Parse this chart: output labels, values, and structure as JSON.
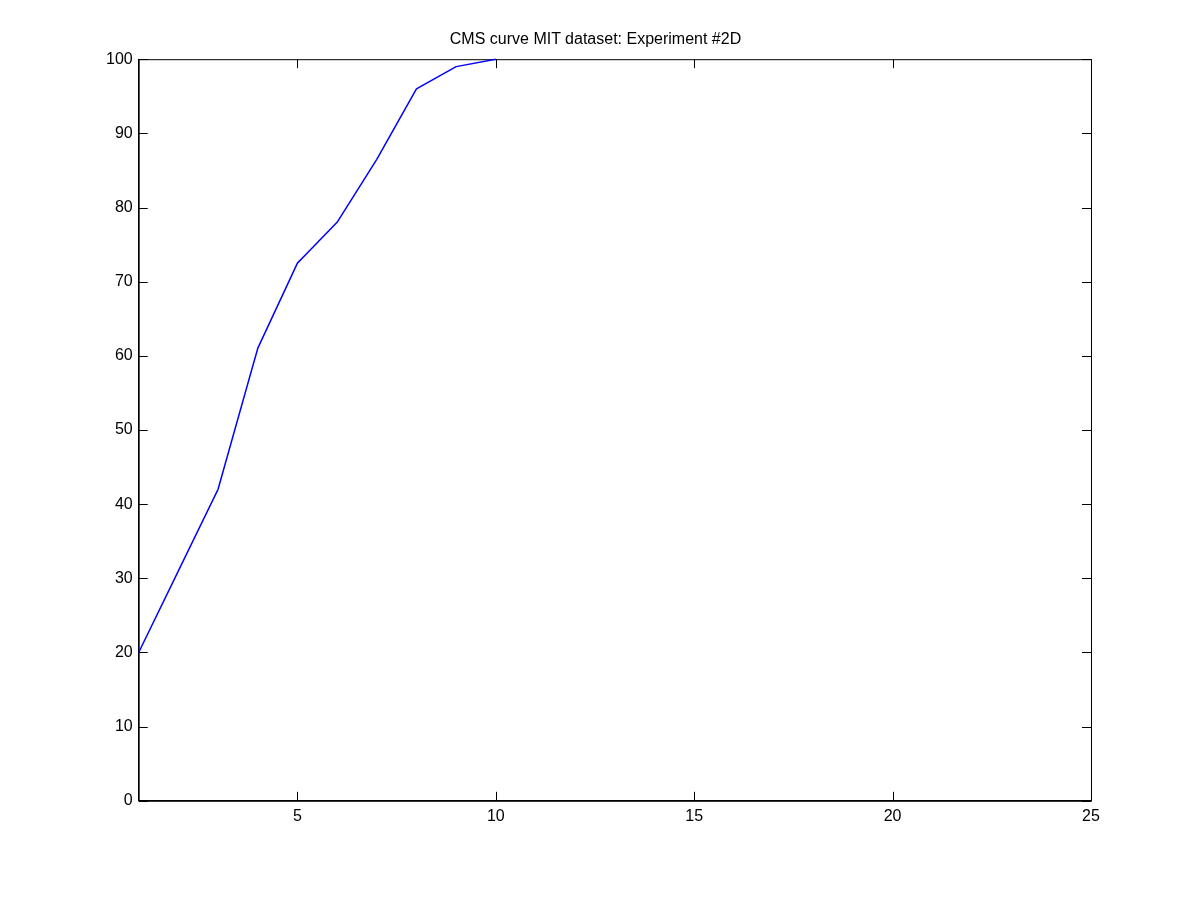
{
  "chart_data": {
    "type": "line",
    "title": "CMS curve MIT dataset: Experiment #2D",
    "x": [
      1,
      2,
      3,
      4,
      5,
      6,
      7,
      8,
      9,
      10
    ],
    "series": [
      {
        "color": "#0000ff",
        "values": [
          20,
          31,
          42,
          61,
          72.5,
          78,
          86.5,
          96,
          99,
          100
        ]
      }
    ],
    "xlim": [
      1,
      25
    ],
    "xticks": [
      5,
      10,
      15,
      20,
      25
    ],
    "ylim": [
      0,
      100
    ],
    "yticks": [
      0,
      10,
      20,
      30,
      40,
      50,
      60,
      70,
      80,
      90,
      100
    ],
    "grid": false,
    "legend": false,
    "marker": "none",
    "line_style": "solid"
  }
}
